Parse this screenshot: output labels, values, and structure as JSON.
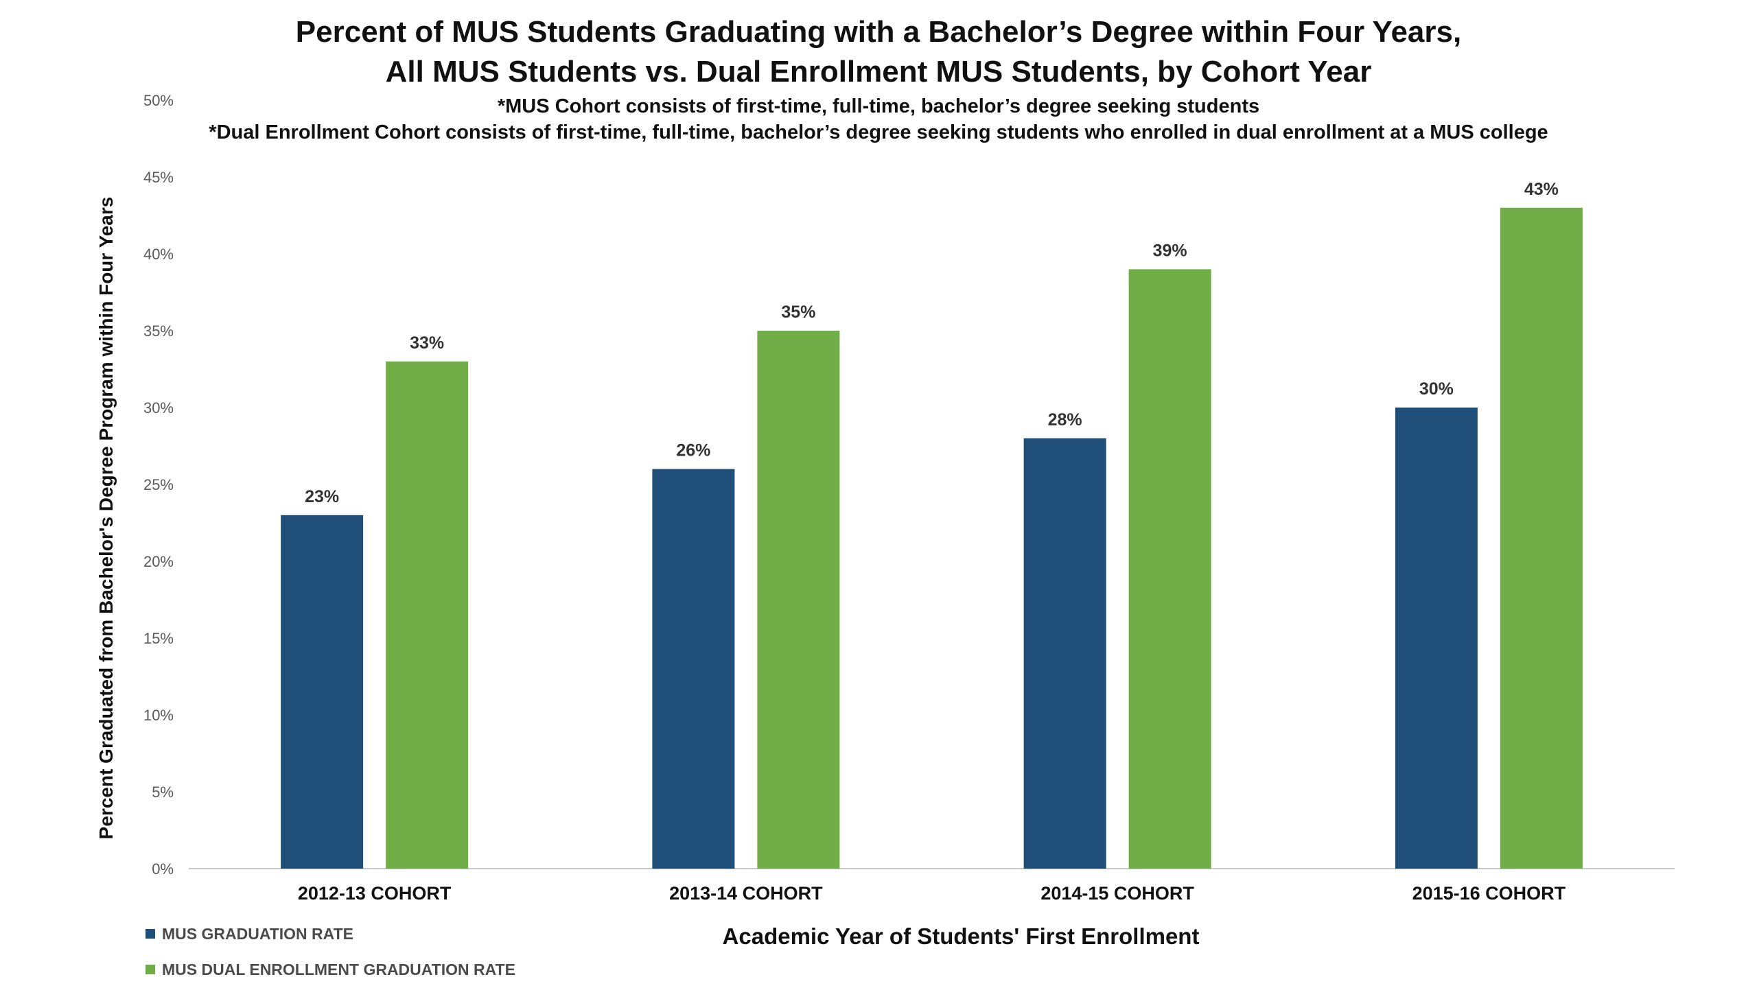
{
  "page": {
    "title_line_1": "Percent of MUS Students Graduating with a Bachelor’s Degree within Four Years,",
    "title_line_2": "All MUS Students vs. Dual Enrollment MUS Students, by Cohort Year",
    "note_1": "*MUS Cohort consists of first-time, full-time, bachelor’s degree seeking students",
    "note_2": "*Dual Enrollment Cohort consists of first-time, full-time, bachelor’s degree seeking students who enrolled in dual enrollment at a MUS college"
  },
  "chart_data": {
    "type": "bar",
    "title": "Percent of MUS Students Graduating with a Bachelor’s Degree within Four Years, All MUS Students vs. Dual Enrollment MUS Students, by Cohort Year",
    "subtitle": [
      "*MUS Cohort consists of first-time, full-time, bachelor’s degree seeking students",
      "*Dual Enrollment Cohort consists of first-time, full-time, bachelor’s degree seeking students who enrolled in dual enrollment at a MUS college"
    ],
    "xlabel": "Academic Year of Students' First Enrollment",
    "ylabel": "Percent  Graduated from Bachelor's Degree Program within Four Years",
    "categories": [
      "2012-13 COHORT",
      "2013-14 COHORT",
      "2014-15 COHORT",
      "2015-16 COHORT"
    ],
    "series": [
      {
        "name": "MUS GRADUATION RATE",
        "values": [
          23,
          26,
          28,
          30
        ],
        "labels": [
          "23%",
          "26%",
          "28%",
          "30%"
        ],
        "color": "#1f4e79"
      },
      {
        "name": "MUS DUAL ENROLLMENT GRADUATION RATE",
        "values": [
          33,
          35,
          39,
          43
        ],
        "labels": [
          "33%",
          "35%",
          "39%",
          "43%"
        ],
        "color": "#70ad47"
      }
    ],
    "ylim": [
      0,
      50
    ],
    "yticks": [
      0,
      5,
      10,
      15,
      20,
      25,
      30,
      35,
      40,
      45,
      50
    ],
    "ytick_labels": [
      "0%",
      "5%",
      "10%",
      "15%",
      "20%",
      "25%",
      "30%",
      "35%",
      "40%",
      "45%",
      "50%"
    ],
    "grid": false,
    "legend_position": "bottom-left"
  }
}
